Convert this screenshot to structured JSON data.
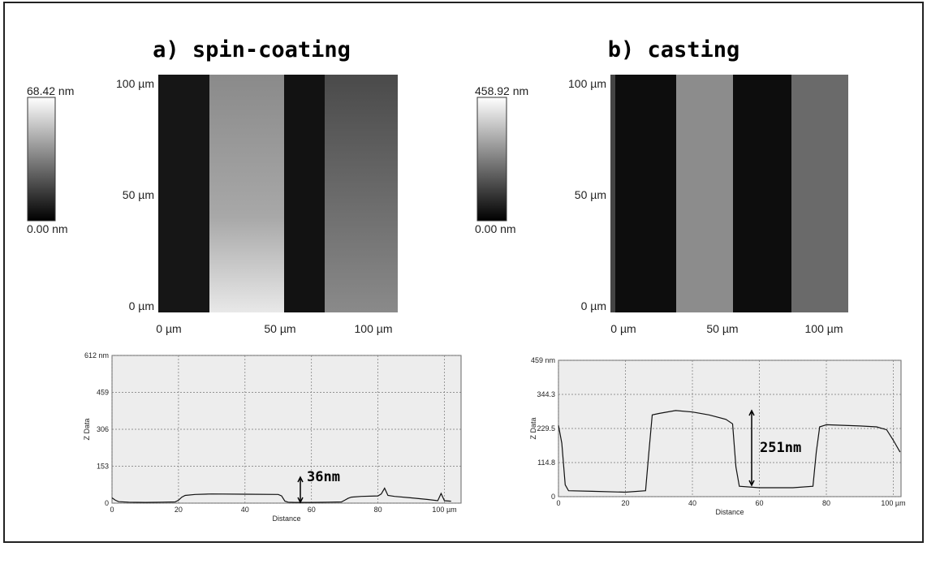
{
  "panels": [
    {
      "title": "a) spin-coating",
      "colorbar": {
        "max": "68.42 nm",
        "min": "0.00 nm"
      },
      "image": {
        "y_labels": [
          "100 µm",
          "50 µm",
          "0 µm"
        ],
        "x_labels": [
          "0 µm",
          "50 µm",
          "100 µm"
        ]
      }
    },
    {
      "title": "b) casting",
      "colorbar": {
        "max": "458.92 nm",
        "min": "0.00 nm"
      },
      "image": {
        "y_labels": [
          "100 µm",
          "50 µm",
          "0 µm"
        ],
        "x_labels": [
          "0 µm",
          "50 µm",
          "100 µm"
        ]
      }
    }
  ],
  "chart_data": [
    {
      "type": "line",
      "xlabel": "Distance",
      "ylabel": "Z Data",
      "annotation": "36nm",
      "color": "#111111",
      "grid": true,
      "xlim": [
        0,
        105
      ],
      "ylim": [
        0,
        612
      ],
      "xticks": [
        0,
        20,
        40,
        60,
        80,
        {
          "value": 100,
          "label": "100 µm"
        }
      ],
      "yticks": [
        0,
        153,
        306,
        459,
        {
          "value": 612,
          "label": "612 nm"
        }
      ],
      "x": [
        0,
        1,
        2,
        5,
        10,
        15,
        19,
        20,
        21,
        22,
        25,
        30,
        40,
        50,
        51,
        52,
        53,
        55,
        60,
        65,
        69,
        70,
        71,
        72,
        75,
        80,
        81,
        82,
        83,
        85,
        90,
        95,
        98,
        99,
        100,
        102
      ],
      "values": [
        22,
        12,
        6,
        4,
        3,
        4,
        5,
        12,
        25,
        32,
        36,
        38,
        37,
        36,
        30,
        8,
        4,
        3,
        3,
        4,
        5,
        12,
        20,
        25,
        28,
        30,
        38,
        62,
        32,
        28,
        22,
        15,
        10,
        40,
        10,
        8
      ]
    },
    {
      "type": "line",
      "xlabel": "Distance",
      "ylabel": "Z Data",
      "annotation": "251nm",
      "color": "#111111",
      "grid": true,
      "xlim": [
        0,
        102.3
      ],
      "ylim": [
        0,
        459
      ],
      "xticks": [
        0,
        20,
        40,
        60,
        80,
        {
          "value": 100,
          "label": "100 µm"
        }
      ],
      "yticks": [
        0,
        114.8,
        229.5,
        344.3,
        {
          "value": 459,
          "label": "459 nm"
        }
      ],
      "x": [
        0,
        1,
        2,
        3,
        10,
        20,
        26,
        27,
        28,
        30,
        35,
        40,
        45,
        50,
        52,
        53,
        54,
        60,
        70,
        76,
        77,
        78,
        80,
        90,
        95,
        98,
        100,
        102
      ],
      "values": [
        240,
        180,
        40,
        20,
        18,
        15,
        20,
        150,
        275,
        280,
        290,
        285,
        275,
        260,
        245,
        100,
        35,
        30,
        30,
        35,
        150,
        235,
        242,
        238,
        235,
        225,
        190,
        150
      ]
    }
  ]
}
